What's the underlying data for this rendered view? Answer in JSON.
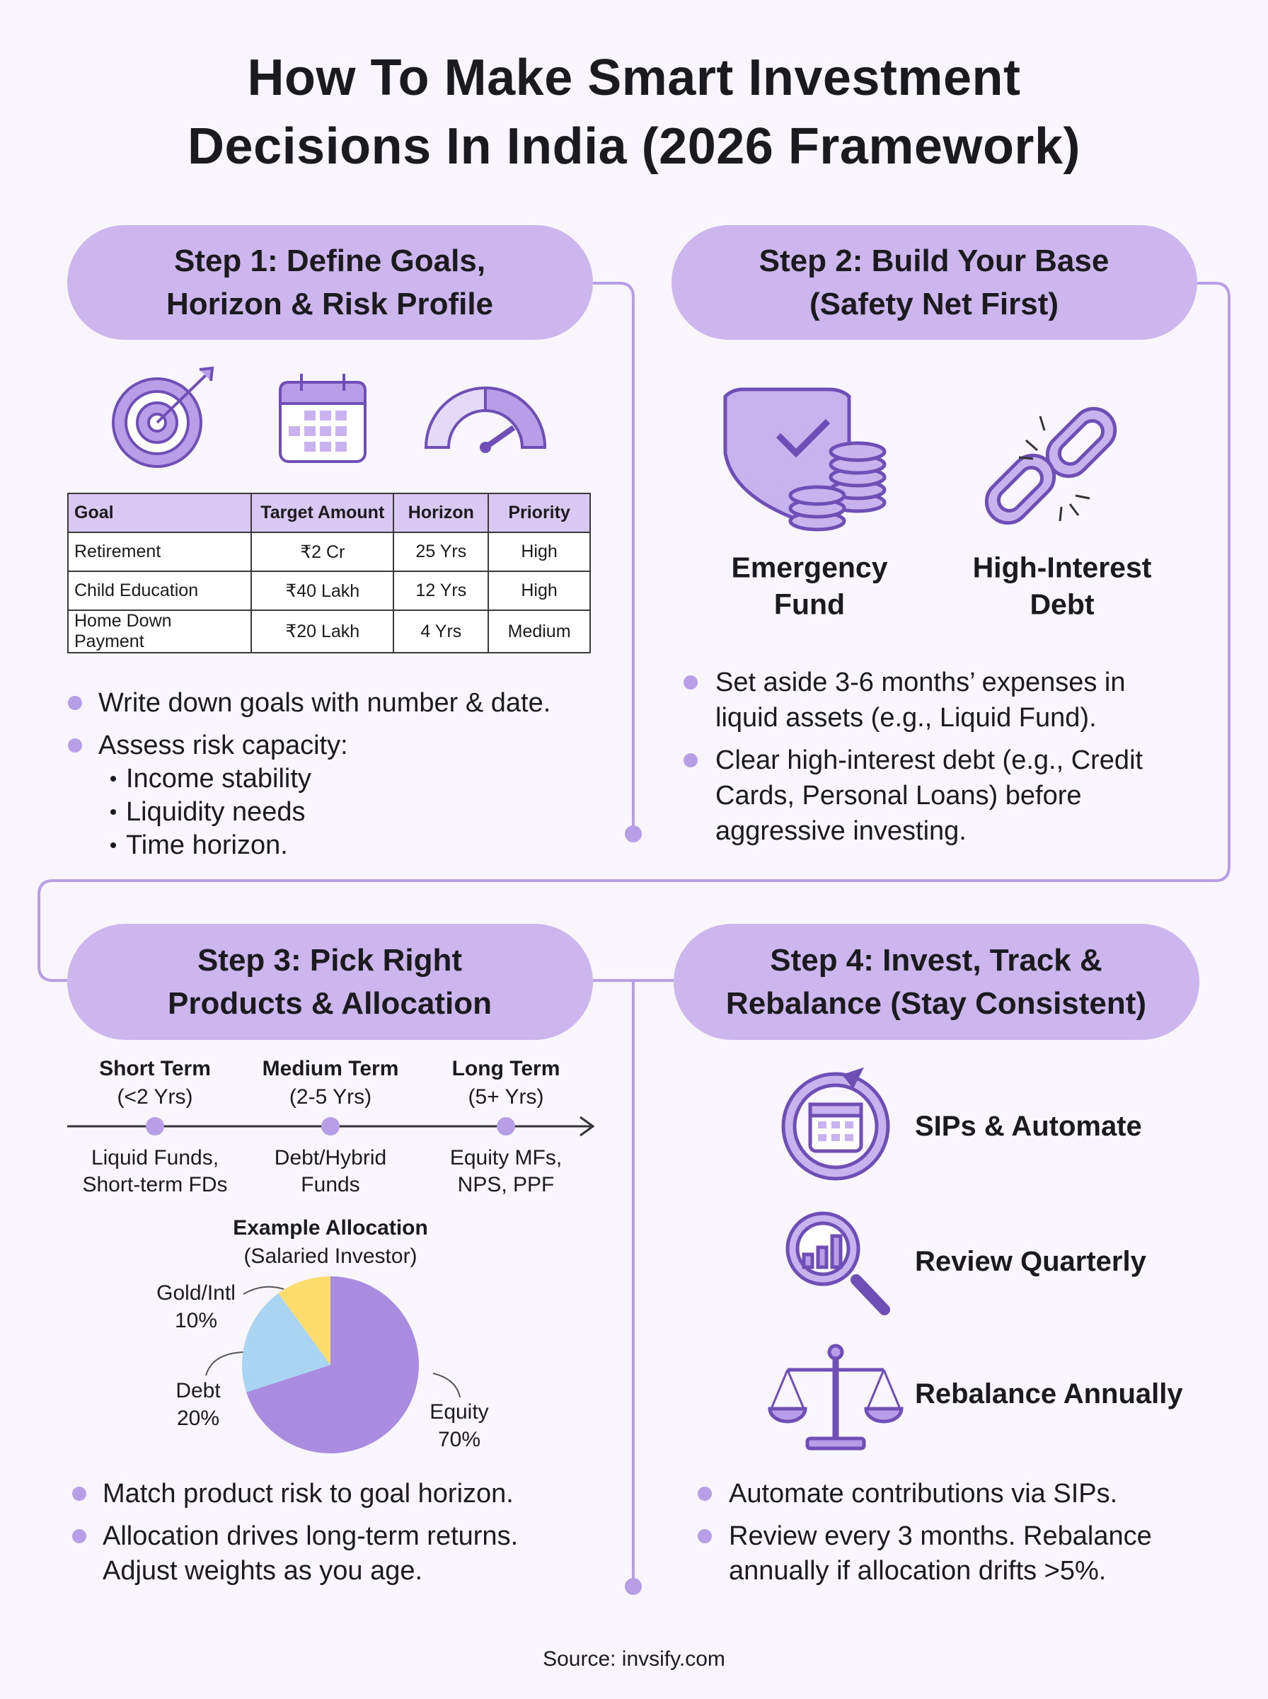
{
  "header": {
    "title_lines": [
      "How To Make Smart Investment",
      "Decisions In India (2026 Framework)"
    ]
  },
  "steps": [
    {
      "title_lines": [
        "Step 1: Define Goals,",
        "Horizon & Risk Profile"
      ],
      "table": {
        "columns": [
          "Goal",
          "Target Amount",
          "Horizon",
          "Priority"
        ],
        "rows": [
          [
            "Retirement",
            "₹2 Cr",
            "25 Yrs",
            "High"
          ],
          [
            "Child Education",
            "₹40 Lakh",
            "12 Yrs",
            "High"
          ],
          [
            "Home Down Payment",
            "₹20 Lakh",
            "4 Yrs",
            "Medium"
          ]
        ]
      },
      "bullets": [
        {
          "lines": [
            "Write down goals with number & date."
          ]
        },
        {
          "lines": [
            "Assess risk capacity:"
          ],
          "sub": [
            "Income stability",
            "Liquidity needs",
            "Time horizon."
          ]
        }
      ]
    },
    {
      "title_lines": [
        "Step 2: Build Your Base",
        "(Safety Net First)"
      ],
      "items": [
        {
          "label_lines": [
            "Emergency",
            "Fund"
          ]
        },
        {
          "label_lines": [
            "High-Interest",
            "Debt"
          ]
        }
      ],
      "bullets": [
        {
          "lines": [
            "Set aside 3-6 months’ expenses in",
            "liquid assets (e.g., Liquid Fund)."
          ]
        },
        {
          "lines": [
            "Clear high-interest debt (e.g., Credit",
            "Cards, Personal Loans) before",
            "aggressive investing."
          ]
        }
      ]
    },
    {
      "title_lines": [
        "Step 3: Pick Right",
        "Products & Allocation"
      ],
      "timeline": [
        {
          "term": "Short Term",
          "range": "(<2 Yrs)",
          "product_lines": [
            "Liquid Funds,",
            "Short-term FDs"
          ]
        },
        {
          "term": "Medium Term",
          "range": "(2-5 Yrs)",
          "product_lines": [
            "Debt/Hybrid",
            "Funds"
          ]
        },
        {
          "term": "Long Term",
          "range": "(5+ Yrs)",
          "product_lines": [
            "Equity MFs,",
            "NPS, PPF"
          ]
        }
      ],
      "bullets": [
        {
          "lines": [
            "Match product risk to goal horizon."
          ]
        },
        {
          "lines": [
            "Allocation drives long-term returns.",
            "Adjust weights as you age."
          ]
        }
      ]
    },
    {
      "title_lines": [
        "Step 4: Invest, Track &",
        "Rebalance (Stay Consistent)"
      ],
      "items": [
        "SIPs & Automate",
        "Review Quarterly",
        "Rebalance Annually"
      ],
      "bullets": [
        {
          "lines": [
            "Automate contributions via SIPs."
          ]
        },
        {
          "lines": [
            "Review every 3 months. Rebalance",
            "annually if allocation drifts >5%."
          ]
        }
      ]
    }
  ],
  "chart_data": {
    "type": "pie",
    "title": "Example Allocation",
    "subtitle": "(Salaried Investor)",
    "categories": [
      "Equity",
      "Debt",
      "Gold/Intl"
    ],
    "values": [
      70,
      20,
      10
    ],
    "value_labels": [
      "70%",
      "20%",
      "10%"
    ],
    "colors": [
      "#a98be0",
      "#a9d5f2",
      "#fcdc6c"
    ]
  },
  "footer": {
    "source": "Source: invsify.com"
  }
}
